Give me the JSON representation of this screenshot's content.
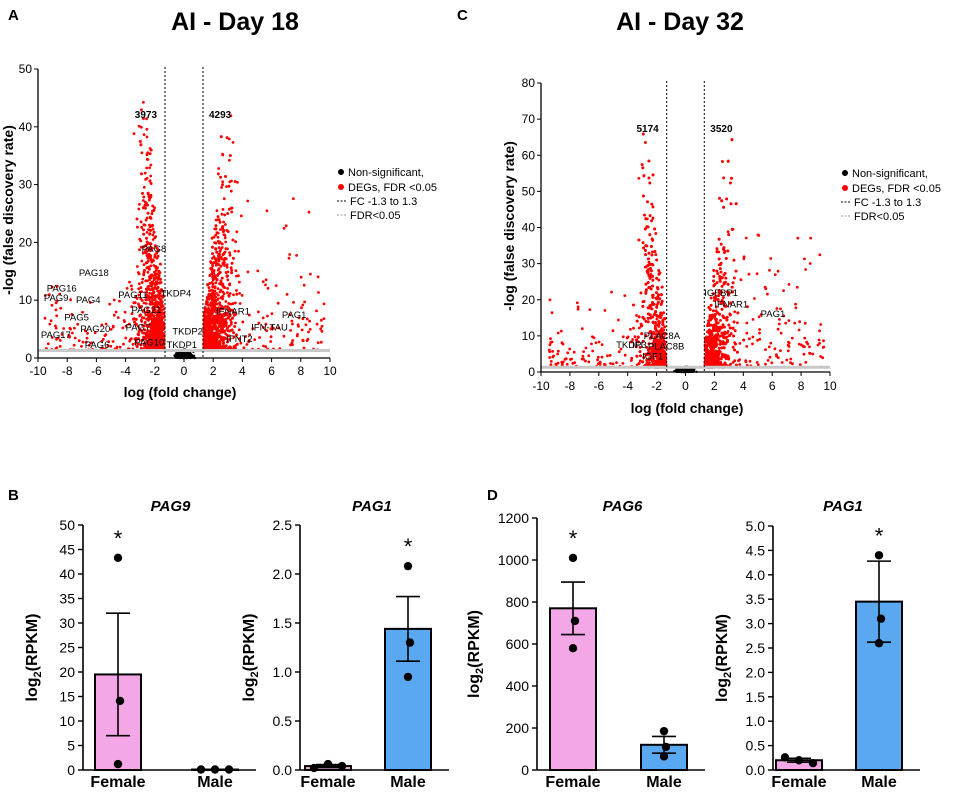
{
  "chart_data": [
    {
      "panel": "A",
      "type": "scatter",
      "title": "AI - Day 18",
      "xlabel": "log (fold change)",
      "ylabel": "-log (false discovery rate)",
      "xlim": [
        -10,
        10
      ],
      "ylim": [
        0,
        50
      ],
      "xticks": [
        -10,
        -8,
        -6,
        -4,
        -2,
        0,
        2,
        4,
        6,
        8,
        10
      ],
      "yticks": [
        0,
        10,
        20,
        30,
        40,
        50
      ],
      "fc_threshold": 1.3,
      "fdr_threshold_y": 1.3,
      "count_down": "3973",
      "count_up": "4293",
      "legend": [
        "Non-significant,",
        "DEGs, FDR <0.05",
        "FC -1.3 to 1.3",
        "FDR<0.05"
      ],
      "density_scale": 45,
      "gene_labels": [
        {
          "name": "PAG8",
          "x": -2.9,
          "y": 18.3
        },
        {
          "name": "PAG18",
          "x": -7.2,
          "y": 14.2
        },
        {
          "name": "PAG16",
          "x": -9.4,
          "y": 11.5
        },
        {
          "name": "PAG9",
          "x": -9.6,
          "y": 9.9
        },
        {
          "name": "PAG4",
          "x": -7.4,
          "y": 9.5
        },
        {
          "name": "PAG11",
          "x": -4.5,
          "y": 10.4
        },
        {
          "name": "TKDP4",
          "x": -1.6,
          "y": 10.6
        },
        {
          "name": "PAG21",
          "x": -3.6,
          "y": 7.8
        },
        {
          "name": "PAG5",
          "x": -8.2,
          "y": 6.5
        },
        {
          "name": "PAG20",
          "x": -7.1,
          "y": 4.5
        },
        {
          "name": "PAG17",
          "x": -9.8,
          "y": 3.5
        },
        {
          "name": "PAG7",
          "x": -4.0,
          "y": 4.8
        },
        {
          "name": "TKDP2",
          "x": -0.8,
          "y": 4.1
        },
        {
          "name": "PAG6",
          "x": -6.8,
          "y": 1.7
        },
        {
          "name": "PAG10",
          "x": -3.4,
          "y": 2.2
        },
        {
          "name": "TKDP1",
          "x": -1.2,
          "y": 1.7
        },
        {
          "name": "IFNAR1",
          "x": 2.2,
          "y": 7.5
        },
        {
          "name": "PAG1",
          "x": 6.7,
          "y": 6.9
        },
        {
          "name": "IFN-TAU",
          "x": 4.6,
          "y": 4.8
        },
        {
          "name": "IFNT2",
          "x": 2.9,
          "y": 2.8
        }
      ]
    },
    {
      "panel": "C",
      "type": "scatter",
      "title": "AI - Day 32",
      "xlabel": "log (fold change)",
      "ylabel": "-log (false discovery rate)",
      "xlim": [
        -10,
        10
      ],
      "ylim": [
        0,
        80
      ],
      "xticks": [
        -10,
        -8,
        -6,
        -4,
        -2,
        0,
        2,
        4,
        6,
        8,
        10
      ],
      "yticks": [
        0,
        10,
        20,
        30,
        40,
        50,
        60,
        70,
        80
      ],
      "fc_threshold": 1.3,
      "fdr_threshold_y": 1.3,
      "count_down": "5174",
      "count_up": "3520",
      "legend": [
        "Non-significant,",
        "DEGs, FDR <0.05",
        "FC -1.3 to 1.3",
        "FDR<0.05"
      ],
      "density_scale": 72,
      "gene_labels": [
        {
          "name": "IGFBP1",
          "x": 1.3,
          "y": 21.0
        },
        {
          "name": "IFNAR1",
          "x": 2.0,
          "y": 17.8
        },
        {
          "name": "PAG1",
          "x": 5.2,
          "y": 15.2
        },
        {
          "name": "PLAC8A",
          "x": -2.9,
          "y": 9.2
        },
        {
          "name": "TKDP3",
          "x": -4.8,
          "y": 6.6
        },
        {
          "name": "IFI",
          "x": -3.7,
          "y": 6.6
        },
        {
          "name": "PLAC8B",
          "x": -2.6,
          "y": 6.2
        },
        {
          "name": "IGF1",
          "x": -3.0,
          "y": 3.4
        }
      ]
    },
    {
      "panel": "B",
      "type": "bar",
      "title": "PAG9",
      "ylabel": "log2(RPKM)",
      "ylim": [
        0,
        50
      ],
      "yticks": [
        0,
        5,
        10,
        15,
        20,
        25,
        30,
        35,
        40,
        45,
        50
      ],
      "categories": [
        "Female",
        "Male"
      ],
      "values": [
        19.5,
        0.1
      ],
      "sem": [
        12.5,
        0
      ],
      "points": [
        [
          43.3,
          14.1,
          1.2
        ],
        [
          0.1,
          0.1,
          0.1
        ]
      ],
      "colors": [
        "#f4a7e6",
        "#5aa8f0"
      ],
      "significant": "*",
      "sig_index": 0
    },
    {
      "panel": "B",
      "type": "bar",
      "title": "PAG1",
      "ylabel": "log2(RPKM)",
      "ylim": [
        0,
        2.5
      ],
      "yticks": [
        "0.0",
        "0.5",
        "1.0",
        "1.5",
        "2.0",
        "2.5"
      ],
      "categories": [
        "Female",
        "Male"
      ],
      "values": [
        0.04,
        1.44
      ],
      "sem": [
        0.015,
        0.33
      ],
      "points": [
        [
          0.02,
          0.06,
          0.04
        ],
        [
          2.08,
          1.3,
          0.95
        ]
      ],
      "colors": [
        "#f4a7e6",
        "#5aa8f0"
      ],
      "significant": "*",
      "sig_index": 1
    },
    {
      "panel": "D",
      "type": "bar",
      "title": "PAG6",
      "ylabel": "log2(RPKM)",
      "ylim": [
        0,
        1200
      ],
      "yticks": [
        0,
        200,
        400,
        600,
        800,
        1000,
        1200
      ],
      "categories": [
        "Female",
        "Male"
      ],
      "values": [
        770,
        120
      ],
      "sem": [
        125,
        40
      ],
      "points": [
        [
          1010,
          710,
          580
        ],
        [
          185,
          110,
          65
        ]
      ],
      "colors": [
        "#f4a7e6",
        "#5aa8f0"
      ],
      "significant": "*",
      "sig_index": 0
    },
    {
      "panel": "D",
      "type": "bar",
      "title": "PAG1",
      "ylabel": "log2(RPKM)",
      "ylim": [
        0,
        5
      ],
      "yticks": [
        "0.0",
        "0.5",
        "1.0",
        "1.5",
        "2.0",
        "2.5",
        "3.0",
        "3.5",
        "4.0",
        "4.5",
        "5.0"
      ],
      "categories": [
        "Female",
        "Male"
      ],
      "values": [
        0.2,
        3.45
      ],
      "sem": [
        0.04,
        0.83
      ],
      "points": [
        [
          0.26,
          0.2,
          0.14
        ],
        [
          4.4,
          3.1,
          2.6
        ]
      ],
      "colors": [
        "#f4a7e6",
        "#5aa8f0"
      ],
      "significant": "*",
      "sig_index": 1
    }
  ],
  "panel_letters": [
    "A",
    "C",
    "B",
    "D"
  ]
}
